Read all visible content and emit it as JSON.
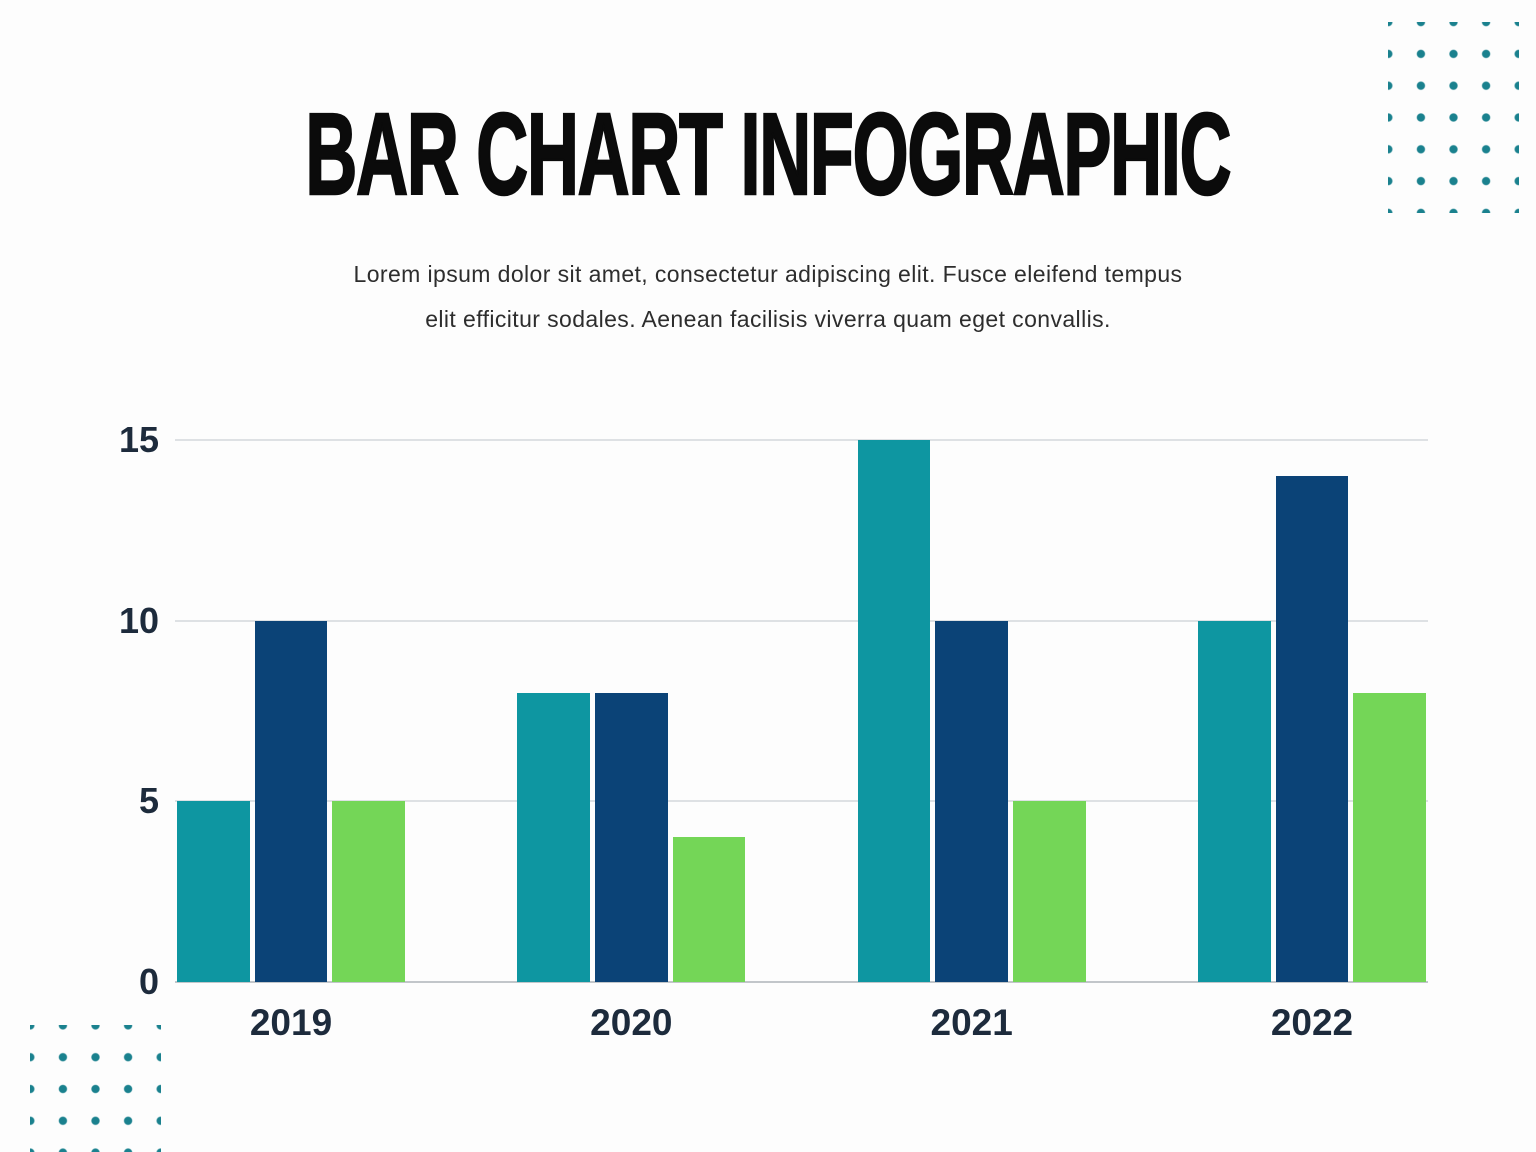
{
  "title": "BAR CHART INFOGRAPHIC",
  "subtitle": {
    "line1": "Lorem ipsum dolor sit amet, consectetur adipiscing elit. Fusce eleifend tempus",
    "line2": "elit efficitur sodales. Aenean facilisis viverra quam eget convallis."
  },
  "chart_data": {
    "type": "bar",
    "title": "BAR CHART INFOGRAPHIC",
    "categories": [
      "2019",
      "2020",
      "2021",
      "2022"
    ],
    "series": [
      {
        "name": "teal",
        "color": "#0E96A1",
        "values": [
          5,
          8,
          15,
          10
        ]
      },
      {
        "name": "navy",
        "color": "#0B4377",
        "values": [
          10,
          8,
          10,
          14
        ]
      },
      {
        "name": "green",
        "color": "#74D657",
        "values": [
          5,
          4,
          5,
          8
        ]
      }
    ],
    "yticks": [
      0,
      5,
      10,
      15
    ],
    "ylim": [
      0,
      15
    ],
    "xlabel": "",
    "ylabel": "",
    "grid": true,
    "legend_position": "none"
  },
  "colors": {
    "accent_dots": "#1A818E",
    "axis_text": "#1D2B3C",
    "gridline": "#DEE1E4",
    "baseline": "#C2C6CA",
    "background": "#FDFDFD",
    "title_text": "#0B0B0B"
  }
}
